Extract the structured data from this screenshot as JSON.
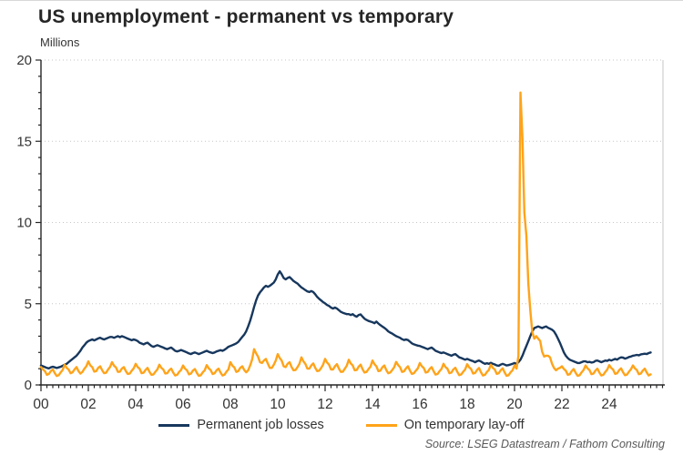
{
  "page": {
    "title": "US unemployment - permanent vs temporary",
    "units_label": "Millions",
    "source": "Source: LSEG Datastream / Fathom Consulting"
  },
  "chart_data": {
    "type": "line",
    "title": "US unemployment - permanent vs temporary",
    "xlabel": "",
    "ylabel": "Millions",
    "ylim": [
      0,
      20
    ],
    "yticks": [
      0,
      5,
      10,
      15,
      20
    ],
    "y_minor_tick_step": 1,
    "xlim": [
      2000,
      2026.3
    ],
    "xtick_years": [
      2000,
      2002,
      2004,
      2006,
      2008,
      2010,
      2012,
      2014,
      2016,
      2018,
      2020,
      2022,
      2024
    ],
    "xtick_labels": [
      "00",
      "02",
      "04",
      "06",
      "08",
      "10",
      "12",
      "14",
      "16",
      "18",
      "20",
      "22",
      "24"
    ],
    "x_minor_tick_step_years": 0.25,
    "grid": "horizontal-dotted",
    "grid_color": "#c6c6c6",
    "axis_color": "#262626",
    "legend_position": "bottom",
    "x_start_year": 2000.0,
    "x_step_months": 1,
    "series": [
      {
        "name": "Permanent job losses",
        "color": "#17375D",
        "values": [
          1.2,
          1.15,
          1.1,
          1.05,
          1.02,
          1.08,
          1.12,
          1.08,
          1.04,
          1.08,
          1.12,
          1.18,
          1.25,
          1.3,
          1.4,
          1.5,
          1.6,
          1.7,
          1.8,
          1.95,
          2.1,
          2.3,
          2.45,
          2.6,
          2.7,
          2.75,
          2.8,
          2.74,
          2.8,
          2.86,
          2.9,
          2.84,
          2.8,
          2.85,
          2.9,
          2.95,
          2.95,
          2.9,
          2.95,
          3.0,
          2.94,
          3.0,
          2.96,
          2.9,
          2.85,
          2.8,
          2.75,
          2.8,
          2.76,
          2.7,
          2.6,
          2.55,
          2.5,
          2.56,
          2.6,
          2.5,
          2.4,
          2.35,
          2.4,
          2.45,
          2.4,
          2.35,
          2.3,
          2.24,
          2.2,
          2.26,
          2.3,
          2.2,
          2.1,
          2.06,
          2.1,
          2.15,
          2.1,
          2.05,
          2.0,
          1.94,
          1.9,
          1.96,
          2.0,
          1.95,
          1.9,
          1.95,
          2.0,
          2.05,
          2.1,
          2.04,
          2.0,
          1.96,
          2.0,
          2.06,
          2.1,
          2.14,
          2.1,
          2.16,
          2.25,
          2.35,
          2.4,
          2.45,
          2.5,
          2.56,
          2.65,
          2.8,
          2.95,
          3.1,
          3.3,
          3.6,
          3.95,
          4.35,
          4.8,
          5.2,
          5.5,
          5.7,
          5.85,
          6.0,
          6.1,
          6.04,
          6.1,
          6.2,
          6.3,
          6.5,
          6.8,
          7.0,
          6.82,
          6.58,
          6.5,
          6.58,
          6.64,
          6.52,
          6.4,
          6.32,
          6.24,
          6.12,
          6.0,
          5.92,
          5.84,
          5.76,
          5.72,
          5.78,
          5.72,
          5.58,
          5.42,
          5.3,
          5.2,
          5.1,
          5.02,
          4.92,
          4.86,
          4.76,
          4.7,
          4.76,
          4.7,
          4.6,
          4.5,
          4.44,
          4.4,
          4.36,
          4.36,
          4.3,
          4.36,
          4.26,
          4.2,
          4.3,
          4.34,
          4.2,
          4.08,
          4.0,
          3.94,
          3.9,
          3.86,
          3.8,
          3.9,
          3.78,
          3.68,
          3.6,
          3.52,
          3.42,
          3.3,
          3.22,
          3.16,
          3.08,
          3.0,
          2.95,
          2.9,
          2.82,
          2.76,
          2.8,
          2.76,
          2.66,
          2.56,
          2.5,
          2.46,
          2.42,
          2.4,
          2.35,
          2.3,
          2.25,
          2.2,
          2.26,
          2.3,
          2.2,
          2.1,
          2.05,
          2.0,
          1.96,
          2.0,
          1.95,
          1.9,
          1.85,
          1.8,
          1.86,
          1.9,
          1.8,
          1.7,
          1.66,
          1.6,
          1.56,
          1.6,
          1.55,
          1.5,
          1.46,
          1.4,
          1.46,
          1.5,
          1.44,
          1.36,
          1.3,
          1.34,
          1.3,
          1.36,
          1.3,
          1.26,
          1.2,
          1.18,
          1.25,
          1.3,
          1.25,
          1.2,
          1.22,
          1.26,
          1.3,
          1.35,
          1.3,
          1.4,
          1.55,
          1.8,
          2.1,
          2.4,
          2.7,
          3.0,
          3.3,
          3.5,
          3.55,
          3.6,
          3.55,
          3.5,
          3.56,
          3.6,
          3.52,
          3.46,
          3.4,
          3.3,
          3.1,
          2.85,
          2.6,
          2.3,
          2.0,
          1.8,
          1.65,
          1.55,
          1.5,
          1.45,
          1.4,
          1.35,
          1.35,
          1.4,
          1.45,
          1.45,
          1.4,
          1.42,
          1.38,
          1.4,
          1.48,
          1.5,
          1.45,
          1.4,
          1.45,
          1.5,
          1.48,
          1.55,
          1.5,
          1.55,
          1.6,
          1.56,
          1.64,
          1.7,
          1.68,
          1.62,
          1.66,
          1.72,
          1.75,
          1.8,
          1.82,
          1.85,
          1.82,
          1.88,
          1.9,
          1.92,
          1.9,
          1.96,
          2.0
        ]
      },
      {
        "name": "On temporary lay-off",
        "color": "#FFA319",
        "values": [
          1.1,
          0.95,
          0.85,
          0.62,
          0.68,
          0.85,
          0.95,
          0.72,
          0.55,
          0.6,
          0.78,
          0.92,
          1.25,
          1.05,
          0.95,
          0.72,
          0.78,
          0.95,
          1.1,
          0.85,
          0.7,
          0.8,
          1.0,
          1.15,
          1.45,
          1.2,
          1.1,
          0.82,
          0.85,
          1.05,
          1.15,
          0.9,
          0.72,
          0.75,
          0.95,
          1.1,
          1.4,
          1.18,
          1.08,
          0.8,
          0.82,
          1.0,
          1.1,
          0.85,
          0.68,
          0.7,
          0.88,
          1.02,
          1.3,
          1.1,
          1.0,
          0.72,
          0.75,
          0.92,
          1.05,
          0.8,
          0.62,
          0.65,
          0.82,
          0.95,
          1.25,
          1.05,
          0.95,
          0.7,
          0.72,
          0.9,
          1.0,
          0.76,
          0.58,
          0.62,
          0.8,
          0.92,
          1.2,
          1.0,
          0.9,
          0.65,
          0.7,
          0.88,
          0.98,
          0.74,
          0.56,
          0.6,
          0.78,
          0.9,
          1.22,
          1.02,
          0.92,
          0.67,
          0.72,
          0.9,
          1.0,
          0.76,
          0.58,
          0.63,
          0.82,
          0.95,
          1.4,
          1.18,
          1.08,
          0.8,
          0.85,
          1.05,
          1.15,
          0.92,
          0.78,
          0.9,
          1.2,
          1.55,
          2.2,
          1.95,
          1.75,
          1.4,
          1.35,
          1.5,
          1.6,
          1.3,
          1.05,
          1.05,
          1.25,
          1.5,
          1.9,
          1.65,
          1.5,
          1.15,
          1.1,
          1.3,
          1.4,
          1.1,
          0.9,
          0.92,
          1.1,
          1.3,
          1.7,
          1.45,
          1.3,
          1.0,
          1.0,
          1.2,
          1.32,
          1.05,
          0.85,
          0.88,
          1.05,
          1.25,
          1.6,
          1.38,
          1.25,
          0.95,
          0.95,
          1.15,
          1.28,
          1.0,
          0.8,
          0.82,
          1.0,
          1.18,
          1.55,
          1.32,
          1.2,
          0.9,
          0.92,
          1.12,
          1.25,
          0.96,
          0.76,
          0.8,
          0.98,
          1.12,
          1.5,
          1.28,
          1.15,
          0.85,
          0.88,
          1.08,
          1.2,
          0.92,
          0.72,
          0.76,
          0.92,
          1.08,
          1.42,
          1.22,
          1.1,
          0.8,
          0.84,
          1.02,
          1.15,
          0.88,
          0.68,
          0.72,
          0.88,
          1.02,
          1.35,
          1.15,
          1.05,
          0.76,
          0.8,
          0.98,
          1.1,
          0.84,
          0.64,
          0.68,
          0.85,
          0.98,
          1.3,
          1.1,
          1.0,
          0.72,
          0.76,
          0.95,
          1.06,
          0.8,
          0.6,
          0.65,
          0.82,
          0.95,
          1.28,
          1.08,
          0.98,
          0.7,
          0.74,
          0.92,
          1.04,
          0.78,
          0.58,
          0.62,
          0.8,
          0.92,
          1.25,
          1.05,
          0.95,
          0.68,
          0.72,
          0.9,
          1.02,
          0.76,
          0.56,
          0.6,
          0.78,
          0.9,
          1.2,
          1.0,
          1.8,
          18.0,
          15.2,
          10.6,
          9.2,
          6.2,
          4.6,
          3.25,
          2.85,
          3.0,
          2.85,
          2.7,
          2.05,
          1.75,
          1.8,
          1.8,
          1.7,
          1.3,
          1.05,
          0.9,
          1.0,
          1.05,
          1.15,
          0.98,
          0.88,
          0.62,
          0.66,
          0.85,
          0.98,
          0.74,
          0.56,
          0.6,
          0.78,
          0.92,
          1.2,
          1.02,
          0.92,
          0.66,
          0.7,
          0.88,
          1.0,
          0.76,
          0.58,
          0.62,
          0.8,
          0.94,
          1.22,
          1.04,
          0.94,
          0.68,
          0.72,
          0.9,
          1.02,
          0.78,
          0.6,
          0.64,
          0.82,
          0.96,
          1.2,
          1.02,
          0.92,
          0.66,
          0.7,
          0.88,
          1.0,
          0.76,
          0.58,
          0.65
        ]
      }
    ]
  }
}
